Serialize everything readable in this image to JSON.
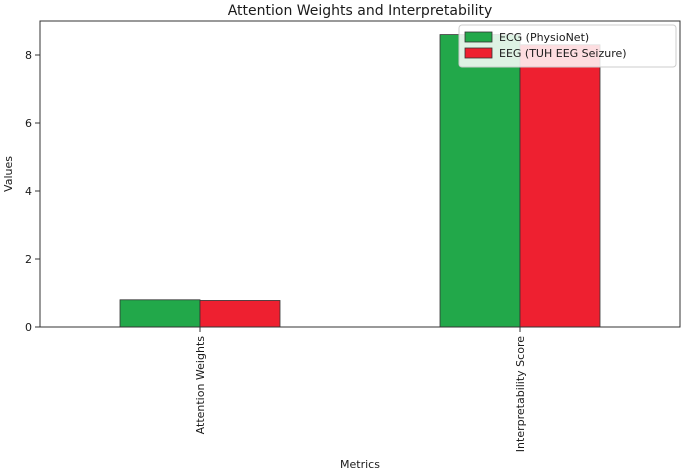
{
  "chart_data": {
    "type": "bar",
    "title": "Attention Weights and Interpretability",
    "xlabel": "Metrics",
    "ylabel": "Values",
    "categories": [
      "Attention Weights",
      "Interpretability Score"
    ],
    "series": [
      {
        "name": "ECG (PhysioNet)",
        "values": [
          0.8,
          8.6
        ],
        "color": "#22a84a"
      },
      {
        "name": "EEG (TUH EEG Seizure)",
        "values": [
          0.78,
          8.3
        ],
        "color": "#ee2030"
      }
    ],
    "ylim": [
      0,
      9.0
    ],
    "yticks": [
      0,
      2,
      4,
      6,
      8
    ],
    "grid": false,
    "legend_position": "top-right"
  }
}
